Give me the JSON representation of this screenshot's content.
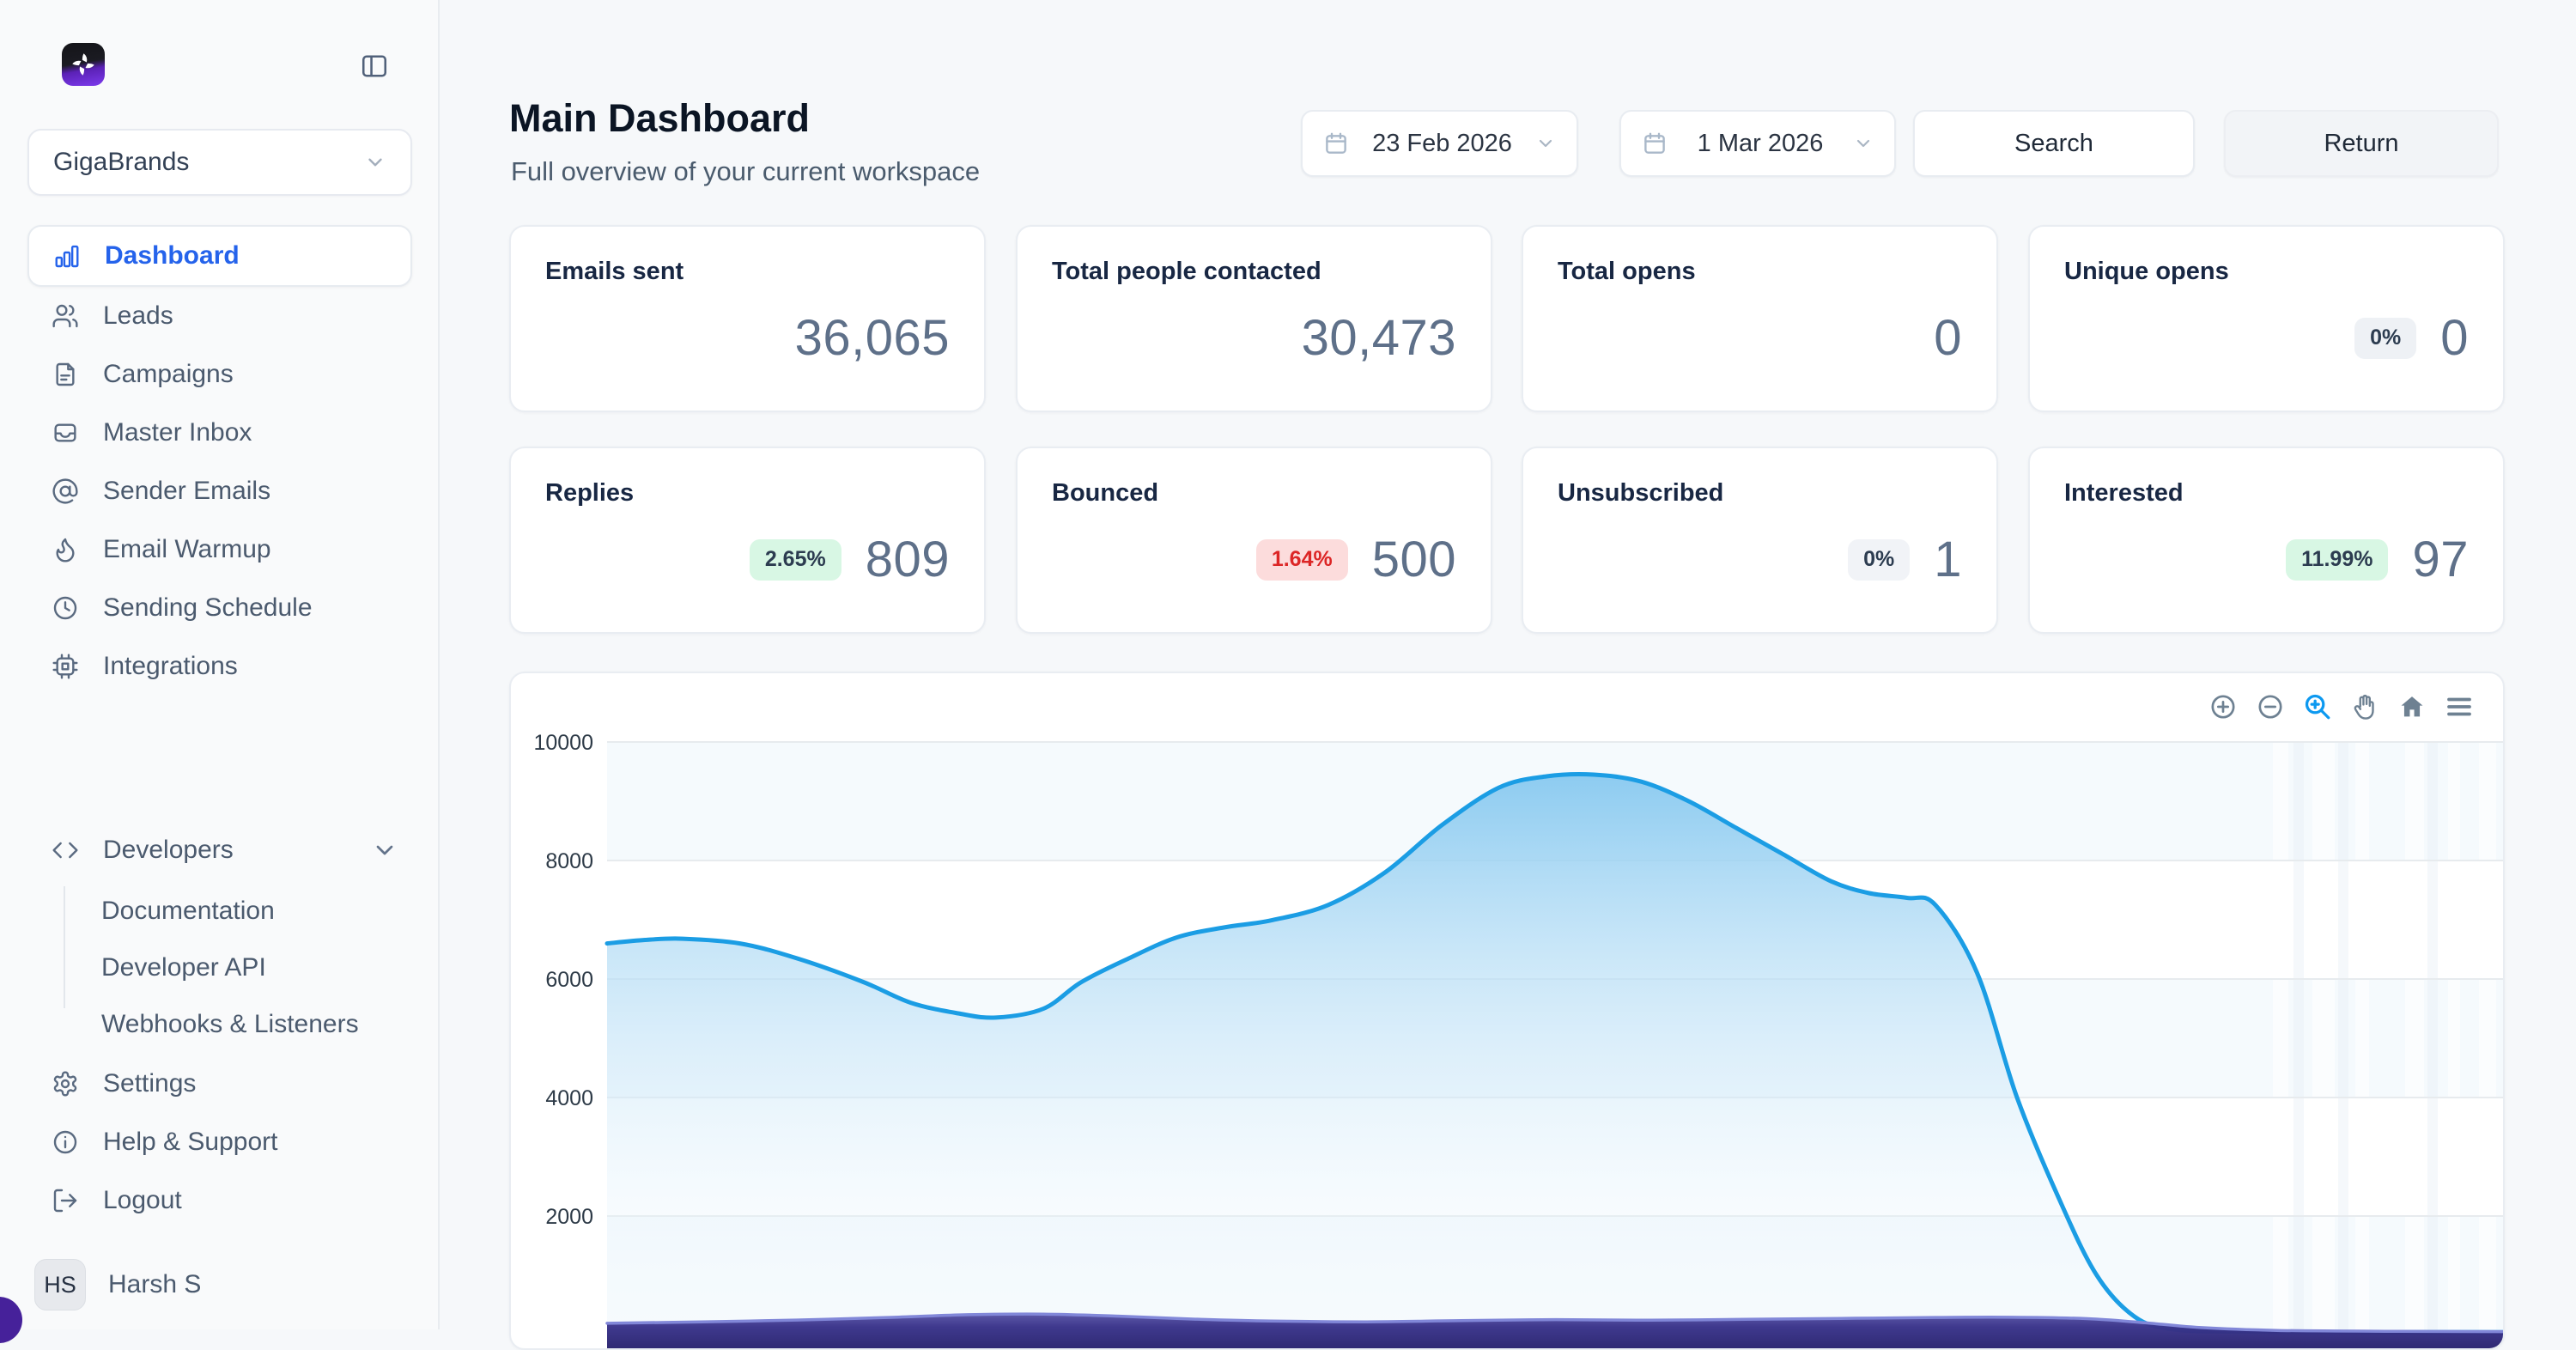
{
  "sidebar": {
    "workspace_name": "GigaBrands",
    "nav": [
      {
        "label": "Dashboard",
        "active": true
      },
      {
        "label": "Leads"
      },
      {
        "label": "Campaigns"
      },
      {
        "label": "Master Inbox"
      },
      {
        "label": "Sender Emails"
      },
      {
        "label": "Email Warmup"
      },
      {
        "label": "Sending Schedule"
      },
      {
        "label": "Integrations"
      }
    ],
    "developers": {
      "label": "Developers",
      "items": [
        {
          "label": "Documentation"
        },
        {
          "label": "Developer API"
        },
        {
          "label": "Webhooks & Listeners"
        }
      ]
    },
    "footer_nav": [
      {
        "label": "Settings"
      },
      {
        "label": "Help & Support"
      },
      {
        "label": "Logout"
      }
    ],
    "user": {
      "initials": "HS",
      "name": "Harsh S"
    }
  },
  "header": {
    "title": "Main Dashboard",
    "subtitle": "Full overview of your current workspace",
    "date_from": "23 Feb 2026",
    "date_to": "1 Mar 2026",
    "search_label": "Search",
    "return_label": "Return"
  },
  "stats": [
    {
      "label": "Emails sent",
      "value": "36,065"
    },
    {
      "label": "Total people contacted",
      "value": "30,473"
    },
    {
      "label": "Total opens",
      "value": "0"
    },
    {
      "label": "Unique opens",
      "value": "0",
      "badge": "0%",
      "badge_style": "gray"
    },
    {
      "label": "Replies",
      "value": "809",
      "badge": "2.65%",
      "badge_style": "green"
    },
    {
      "label": "Bounced",
      "value": "500",
      "badge": "1.64%",
      "badge_style": "red"
    },
    {
      "label": "Unsubscribed",
      "value": "1",
      "badge": "0%",
      "badge_style": "gray"
    },
    {
      "label": "Interested",
      "value": "97",
      "badge": "11.99%",
      "badge_style": "green"
    }
  ],
  "chart_data": {
    "type": "area",
    "title": "",
    "xlabel": "",
    "ylabel": "",
    "ylim": [
      0,
      10000
    ],
    "yticks": [
      10000,
      8000,
      6000,
      4000,
      2000
    ],
    "grid": true,
    "legend": false,
    "x_axis_labels_visible": false,
    "x_unit": "percent_of_plot_width",
    "colors": {
      "blue_line": "#1b9de4",
      "purple_line": "#8187d8",
      "toolbar_active": "#0d99f0"
    },
    "series": [
      {
        "name": "primary-blue-area",
        "color": "#1b9de4",
        "points": [
          [
            0,
            6600
          ],
          [
            2,
            6660
          ],
          [
            4,
            6680
          ],
          [
            7,
            6600
          ],
          [
            10,
            6350
          ],
          [
            13.5,
            5950
          ],
          [
            16,
            5600
          ],
          [
            18.5,
            5420
          ],
          [
            20.5,
            5350
          ],
          [
            23,
            5500
          ],
          [
            25,
            5950
          ],
          [
            27.5,
            6350
          ],
          [
            30,
            6700
          ],
          [
            32.5,
            6870
          ],
          [
            35,
            6990
          ],
          [
            38,
            7250
          ],
          [
            41,
            7800
          ],
          [
            44,
            8600
          ],
          [
            47,
            9230
          ],
          [
            49.5,
            9420
          ],
          [
            52,
            9450
          ],
          [
            54.5,
            9330
          ],
          [
            57,
            9000
          ],
          [
            59.5,
            8550
          ],
          [
            62,
            8100
          ],
          [
            64.5,
            7650
          ],
          [
            66.5,
            7450
          ],
          [
            68.5,
            7370
          ],
          [
            70,
            7250
          ],
          [
            72.2,
            6100
          ],
          [
            74.3,
            4000
          ],
          [
            76.5,
            2300
          ],
          [
            78.5,
            1000
          ],
          [
            80.5,
            300
          ],
          [
            82.5,
            90
          ],
          [
            86,
            50
          ],
          [
            93,
            42
          ],
          [
            100,
            40
          ]
        ]
      },
      {
        "name": "secondary-purple-area",
        "color": "#8187d8",
        "points": [
          [
            0,
            190
          ],
          [
            5,
            215
          ],
          [
            10,
            245
          ],
          [
            15,
            290
          ],
          [
            19,
            335
          ],
          [
            23,
            345
          ],
          [
            27,
            310
          ],
          [
            31,
            260
          ],
          [
            35,
            228
          ],
          [
            40,
            215
          ],
          [
            45,
            235
          ],
          [
            50,
            252
          ],
          [
            55,
            242
          ],
          [
            60,
            258
          ],
          [
            65,
            272
          ],
          [
            70,
            288
          ],
          [
            74,
            292
          ],
          [
            78,
            268
          ],
          [
            81,
            200
          ],
          [
            84,
            118
          ],
          [
            88,
            70
          ],
          [
            94,
            55
          ],
          [
            100,
            50
          ]
        ]
      }
    ],
    "toolbar": [
      "zoom-in",
      "zoom-out",
      "selection-zoom",
      "pan",
      "home",
      "menu"
    ]
  }
}
